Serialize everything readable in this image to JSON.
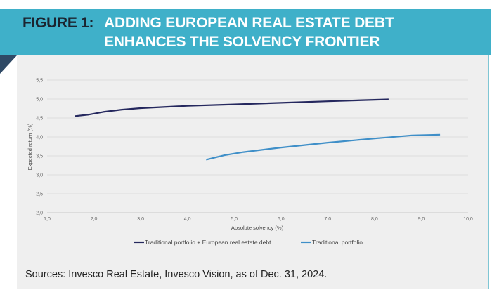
{
  "header": {
    "figure_label": "FIGURE 1:",
    "title_line1": "ADDING EUROPEAN REAL ESTATE DEBT",
    "title_line2": "ENHANCES THE SOLVENCY FRONTIER"
  },
  "sources": "Sources: Invesco Real Estate, Invesco Vision, as of Dec. 31, 2024.",
  "chart_data": {
    "type": "line",
    "title": "",
    "xlabel": "Absolute solvency (%)",
    "ylabel": "Expected return (%)",
    "xlim": [
      1.0,
      10.0
    ],
    "ylim": [
      2.0,
      5.5
    ],
    "xticks": [
      "1,0",
      "2,0",
      "3,0",
      "4,0",
      "5,0",
      "6,0",
      "7,0",
      "8,0",
      "9,0",
      "10,0"
    ],
    "yticks": [
      "2,0",
      "2,5",
      "3,0",
      "3,5",
      "4,0",
      "4,5",
      "5,0",
      "5,5"
    ],
    "grid": "horizontal",
    "legend_position": "bottom",
    "series": [
      {
        "name": "Traditional portfolio + European real estate debt",
        "color": "#25285e",
        "x": [
          1.6,
          1.9,
          2.2,
          2.6,
          3.0,
          4.0,
          5.0,
          6.0,
          7.0,
          8.0,
          8.3
        ],
        "y": [
          4.55,
          4.59,
          4.66,
          4.72,
          4.76,
          4.82,
          4.86,
          4.9,
          4.94,
          4.98,
          4.99
        ]
      },
      {
        "name": "Traditional portfolio",
        "color": "#3f8fc8",
        "x": [
          4.4,
          4.8,
          5.2,
          6.0,
          7.0,
          8.0,
          8.8,
          9.4
        ],
        "y": [
          3.4,
          3.52,
          3.6,
          3.72,
          3.85,
          3.96,
          4.04,
          4.06
        ]
      }
    ]
  }
}
